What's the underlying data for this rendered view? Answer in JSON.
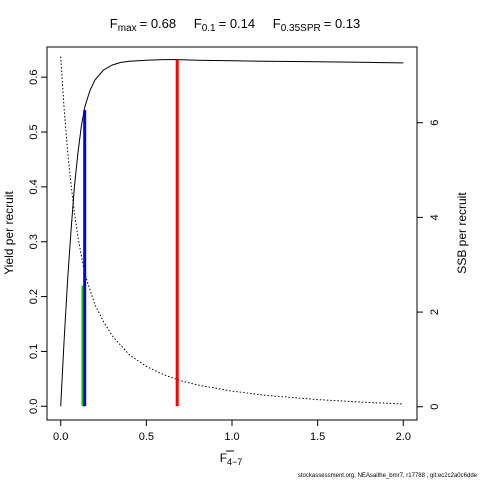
{
  "chart_data": {
    "type": "line",
    "title": {
      "fmax_label": "F",
      "fmax_sub": "max",
      "fmax_value": "= 0.68",
      "f01_label": "F",
      "f01_sub": "0.1",
      "f01_value": "= 0.14",
      "fspr_label": "F",
      "fspr_sub": "0.35SPR",
      "fspr_value": "= 0.13"
    },
    "xlabel": {
      "main": "F",
      "sub": "4−7"
    },
    "ylabel": "Yield per recruit",
    "y2label": "SSB per recruit",
    "xlim": [
      -0.08,
      2.08
    ],
    "ylim": [
      -0.025,
      0.655
    ],
    "y2lim": [
      -0.28,
      7.6
    ],
    "xticks": [
      "0.0",
      "0.5",
      "1.0",
      "1.5",
      "2.0"
    ],
    "yticks": [
      "0.0",
      "0.1",
      "0.2",
      "0.3",
      "0.4",
      "0.5",
      "0.6"
    ],
    "y2ticks": [
      "0",
      "2",
      "4",
      "6"
    ],
    "grid": false,
    "series": [
      {
        "axis": "left",
        "style": "solid",
        "color": "#000000",
        "x": [
          0,
          0.02,
          0.04,
          0.06,
          0.08,
          0.1,
          0.12,
          0.14,
          0.17,
          0.2,
          0.25,
          0.3,
          0.35,
          0.4,
          0.5,
          0.6,
          0.68,
          0.8,
          1.0,
          1.2,
          1.5,
          1.8,
          2.0
        ],
        "y": [
          0.0,
          0.12,
          0.23,
          0.32,
          0.4,
          0.46,
          0.51,
          0.545,
          0.575,
          0.595,
          0.613,
          0.622,
          0.627,
          0.629,
          0.631,
          0.632,
          0.632,
          0.631,
          0.63,
          0.629,
          0.628,
          0.627,
          0.626
        ]
      },
      {
        "axis": "right",
        "style": "dotted",
        "color": "#000000",
        "x": [
          0,
          0.02,
          0.04,
          0.06,
          0.08,
          0.1,
          0.13,
          0.15,
          0.2,
          0.25,
          0.3,
          0.4,
          0.5,
          0.6,
          0.7,
          0.8,
          1.0,
          1.2,
          1.5,
          1.8,
          2.0
        ],
        "y": [
          7.4,
          6.3,
          5.4,
          4.7,
          4.1,
          3.6,
          3.0,
          2.7,
          2.15,
          1.8,
          1.5,
          1.1,
          0.85,
          0.68,
          0.55,
          0.46,
          0.33,
          0.24,
          0.15,
          0.09,
          0.06
        ]
      }
    ],
    "reference_lines": [
      {
        "name": "F0.35SPR",
        "x": 0.13,
        "y0": 0,
        "y1": 0.22,
        "color": "#00cc00"
      },
      {
        "name": "F0.1",
        "x": 0.14,
        "y0": 0,
        "y1": 0.54,
        "color": "#0000ff"
      },
      {
        "name": "Fmax",
        "x": 0.68,
        "y0": 0,
        "y1": 0.632,
        "color": "#ff0000"
      }
    ]
  },
  "footer": "stockassessment.org, NEAsaithe_bmr7, r17788 , git:ec2c2a0c6dde"
}
